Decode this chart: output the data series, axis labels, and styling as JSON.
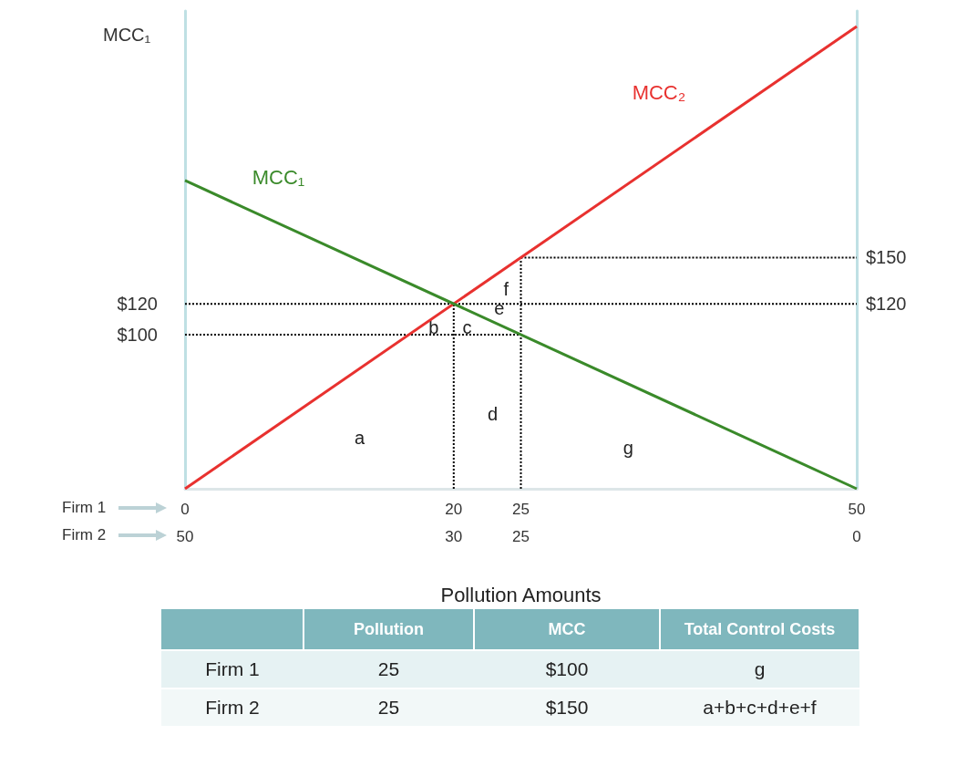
{
  "chart_data": [
    {
      "type": "line",
      "ylabel": "MCC₁",
      "xlabel": "Pollution Amounts",
      "marker": "none",
      "legend": false,
      "grid": false,
      "xlim": [
        0,
        50
      ],
      "xticks": [
        0,
        20,
        25,
        50
      ],
      "x2lim": [
        50,
        0
      ],
      "x2ticks": [
        50,
        30,
        25,
        0
      ],
      "ylim": [
        0,
        310
      ],
      "yticks": [
        {
          "value": 120,
          "label": "$120"
        },
        {
          "value": 100,
          "label": "$100"
        }
      ],
      "y2lim": [
        0,
        310
      ],
      "y2ticks": [
        {
          "value": 150,
          "label": "$150"
        },
        {
          "value": 120,
          "label": "$120"
        }
      ],
      "series": [
        {
          "name": "MCC₂",
          "color": "#e8312f",
          "x": [
            0,
            50
          ],
          "values": [
            0,
            300
          ]
        },
        {
          "name": "MCC₁",
          "color": "#3a8a2a",
          "x": [
            0,
            50
          ],
          "values": [
            200,
            0
          ]
        },
        {
          "color": "#000000",
          "line_style": "dotted",
          "x": [
            0,
            50
          ],
          "values": [
            120,
            120
          ]
        },
        {
          "color": "#000000",
          "line_style": "dotted",
          "x": [
            0,
            25
          ],
          "values": [
            100,
            100
          ]
        },
        {
          "color": "#000000",
          "line_style": "dotted",
          "x": [
            25,
            50
          ],
          "values": [
            150,
            150
          ]
        },
        {
          "color": "#000000",
          "line_style": "dotted",
          "x": [
            20,
            20
          ],
          "values": [
            0,
            120
          ]
        },
        {
          "color": "#000000",
          "line_style": "dotted",
          "x": [
            25,
            25
          ],
          "values": [
            0,
            150
          ]
        }
      ],
      "annotations": [
        "Firm 1",
        "Firm 2",
        "a",
        "b",
        "c",
        "d",
        "e",
        "f",
        "g"
      ]
    },
    {
      "type": "other",
      "data_labels": true,
      "categories": [
        "Firm 1",
        "Firm 2"
      ],
      "series": [
        {
          "name": "Pollution",
          "colors": [
            "#e6f2f3",
            "#f2f8f8"
          ],
          "values": [
            25,
            25
          ]
        },
        {
          "name": "MCC",
          "values": [
            null,
            null
          ],
          "value_labels": [
            "$100",
            "$150"
          ]
        },
        {
          "name": "Total Control Costs",
          "values": [
            null,
            null
          ],
          "value_labels": [
            "g",
            "a+b+c+d+e+f"
          ]
        }
      ]
    }
  ]
}
